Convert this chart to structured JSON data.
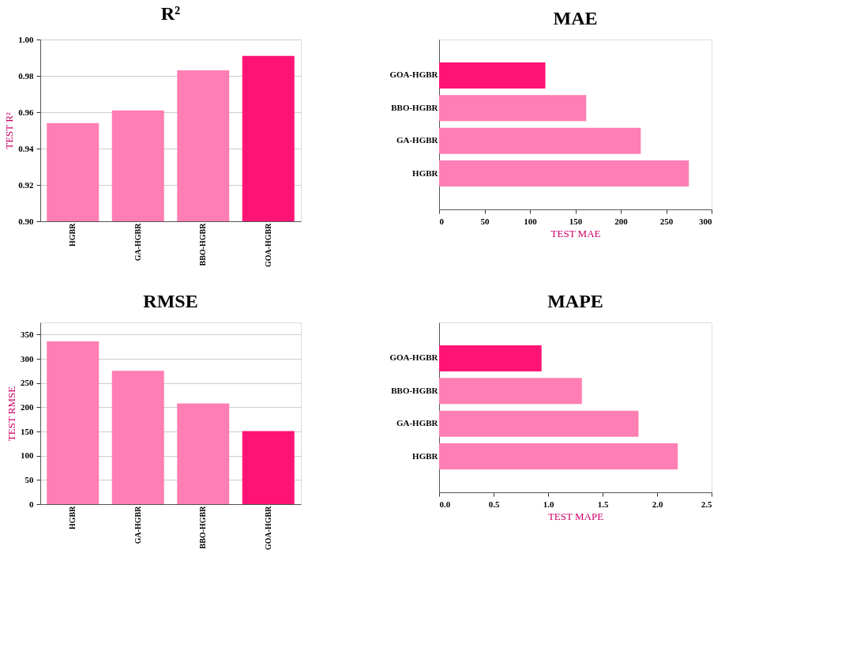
{
  "chart_data": [
    {
      "type": "bar",
      "title": "R²",
      "ylabel": "TEST R²",
      "categories": [
        "HGBR",
        "GA-HGBR",
        "BBO-HGBR",
        "GOA-HGBR"
      ],
      "values": [
        0.954,
        0.961,
        0.983,
        0.991
      ],
      "colors": [
        "#ff7eb3",
        "#ff7eb3",
        "#ff7eb3",
        "#ff1476"
      ],
      "ylim": [
        0.9,
        1.0
      ],
      "yticks": [
        {
          "value": 0.9,
          "label": "0.90"
        },
        0.92,
        0.94,
        0.96,
        0.98,
        {
          "value": 1.0,
          "label": "1.00"
        }
      ],
      "grid": "y"
    },
    {
      "type": "bar",
      "orientation": "horizontal",
      "title": "MAE",
      "xlabel": "TEST MAE",
      "categories": [
        "GOA-HGBR",
        "BBO-HGBR",
        "GA-HGBR",
        "HGBR"
      ],
      "values": [
        117,
        162,
        222,
        275
      ],
      "colors": [
        "#ff1476",
        "#ff7eb3",
        "#ff7eb3",
        "#ff7eb3"
      ],
      "xlim": [
        0,
        300
      ],
      "xticks": [
        0,
        50,
        100,
        150,
        200,
        250,
        300
      ]
    },
    {
      "type": "bar",
      "title": "RMSE",
      "ylabel": "TEST RMSE",
      "categories": [
        "HGBR",
        "GA-HGBR",
        "BBO-HGBR",
        "GOA-HGBR"
      ],
      "values": [
        336,
        275,
        208,
        151
      ],
      "colors": [
        "#ff7eb3",
        "#ff7eb3",
        "#ff7eb3",
        "#ff1476"
      ],
      "ylim": [
        0,
        375
      ],
      "yticks": [
        0,
        50,
        100,
        150,
        200,
        250,
        300,
        350
      ],
      "grid": "y"
    },
    {
      "type": "bar",
      "orientation": "horizontal",
      "title": "MAPE",
      "xlabel": "TEST MAPE",
      "categories": [
        "GOA-HGBR",
        "BBO-HGBR",
        "GA-HGBR",
        "HGBR"
      ],
      "values": [
        0.94,
        1.31,
        1.83,
        2.19
      ],
      "colors": [
        "#ff1476",
        "#ff7eb3",
        "#ff7eb3",
        "#ff7eb3"
      ],
      "xlim": [
        0,
        2.5
      ],
      "xticks": [
        {
          "value": 0,
          "label": "0.0"
        },
        0.5,
        {
          "value": 1,
          "label": "1.0"
        },
        1.5,
        {
          "value": 2,
          "label": "2.0"
        },
        2.5
      ]
    }
  ]
}
